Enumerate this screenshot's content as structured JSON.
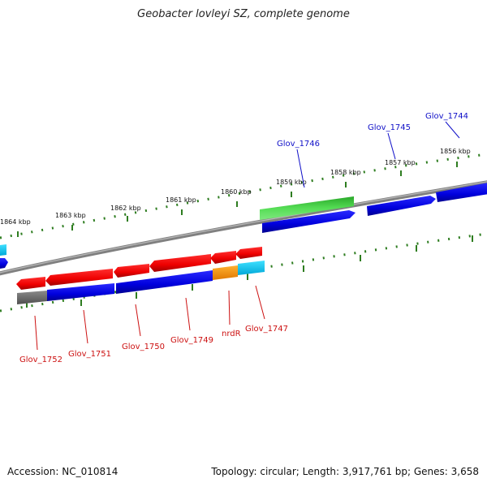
{
  "title": "Geobacter lovleyi SZ, complete genome",
  "footer": {
    "accession": "Accession: NC_010814",
    "summary": "Topology: circular; Length: 3,917,761 bp; Genes: 3,658"
  },
  "colors": {
    "backbone": "#808080",
    "tick": "#2e7d20",
    "forward_label": "#1010c8",
    "reverse_label": "#cc1010"
  },
  "scale_labels": [
    "1864 kbp",
    "1863 kbp",
    "1862 kbp",
    "1861 kbp",
    "1860 kbp",
    "1859 kbp",
    "1858 kbp",
    "1857 kbp",
    "1856 kbp"
  ],
  "gene_labels": {
    "forward": [
      "Glov_1746",
      "Glov_1745",
      "Glov_1744"
    ],
    "reverse": [
      "Glov_1752",
      "Glov_1751",
      "Glov_1750",
      "Glov_1749",
      "nrdR",
      "Glov_1747"
    ]
  }
}
